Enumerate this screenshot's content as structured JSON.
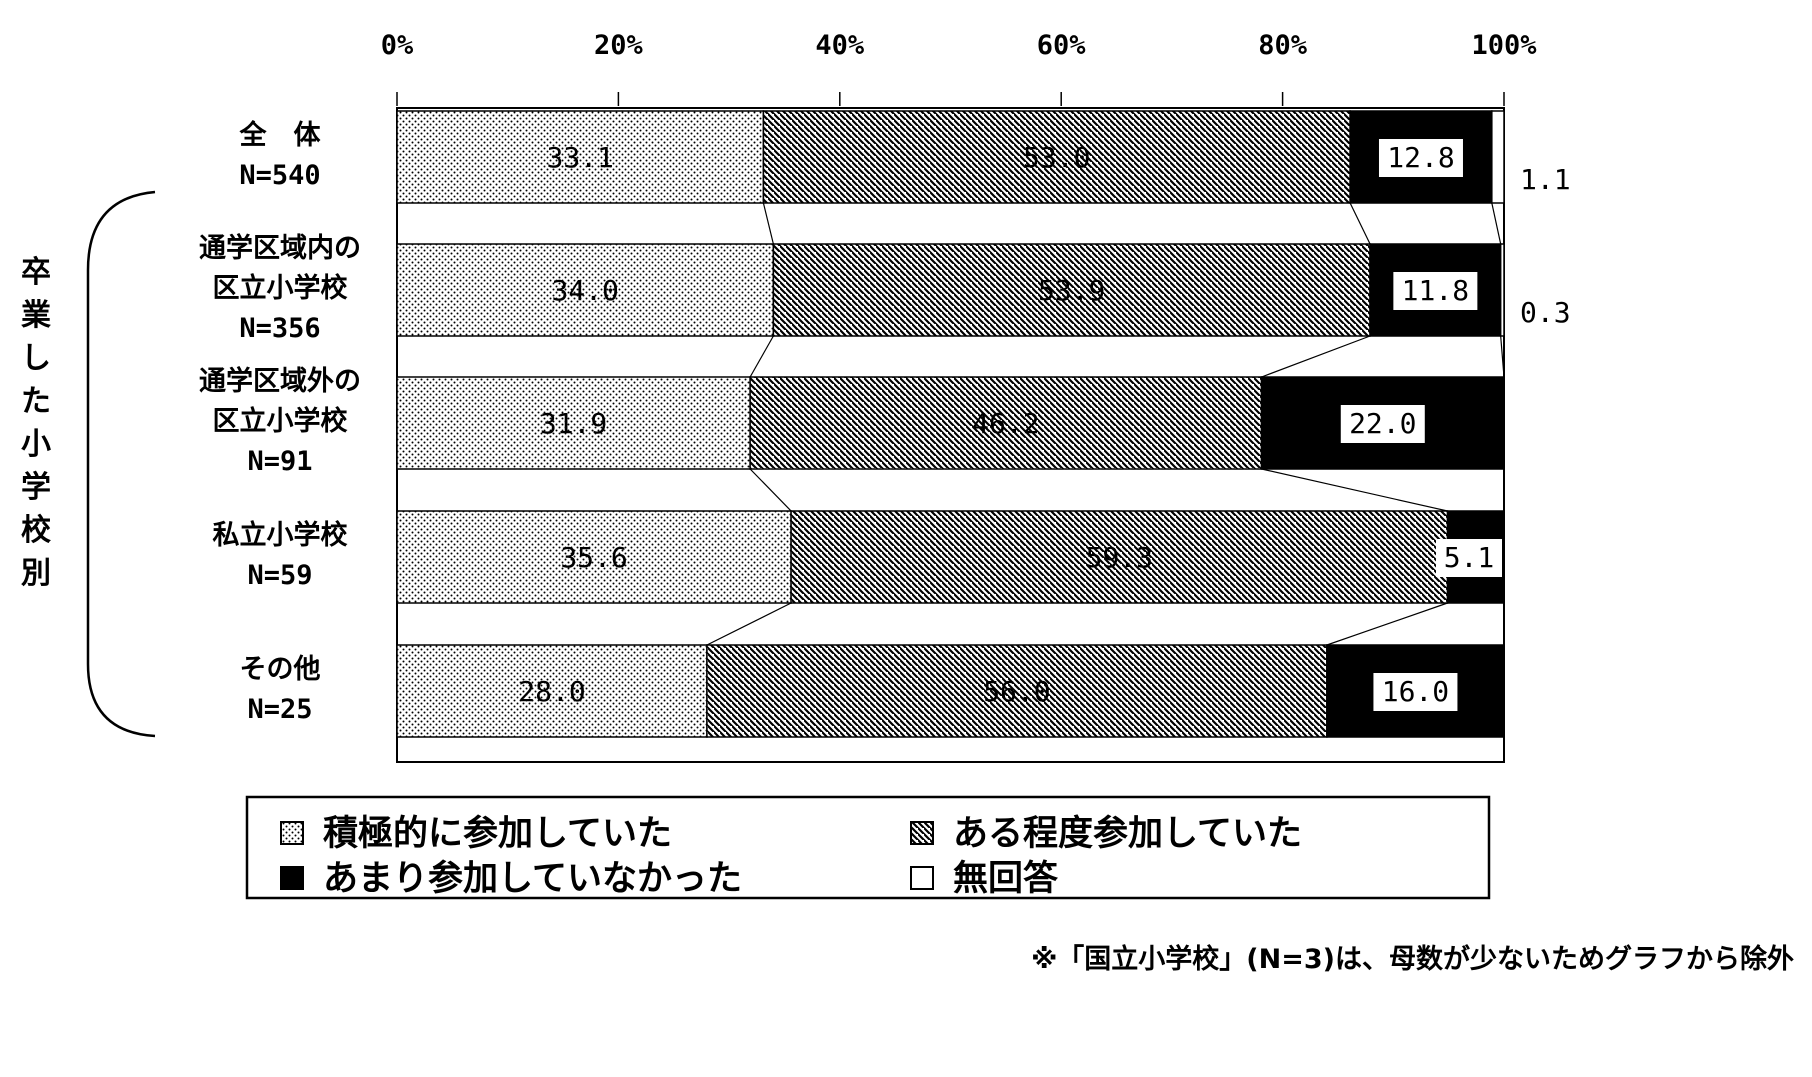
{
  "chart_data": {
    "type": "bar",
    "orientation": "horizontal",
    "stacked": true,
    "xlim": [
      0,
      100
    ],
    "x_ticks": [
      "0%",
      "20%",
      "40%",
      "60%",
      "80%",
      "100%"
    ],
    "categories": [
      [
        "全　体",
        "N=540"
      ],
      [
        "通学区域内の",
        "区立小学校",
        "N=356"
      ],
      [
        "通学区域外の",
        "区立小学校",
        "N=91"
      ],
      [
        "私立小学校",
        "N=59"
      ],
      [
        "その他",
        "N=25"
      ]
    ],
    "group_label": "卒業した小学校別",
    "series": [
      {
        "name": "積極的に参加していた",
        "values": [
          33.1,
          34.0,
          31.9,
          35.6,
          28.0
        ],
        "labels": [
          "33.1",
          "34.0",
          "31.9",
          "35.6",
          "28.0"
        ],
        "pattern": "dots"
      },
      {
        "name": "ある程度参加していた",
        "values": [
          53.0,
          53.9,
          46.2,
          59.3,
          56.0
        ],
        "labels": [
          "53.0",
          "53.9",
          "46.2",
          "59.3",
          "56.0"
        ],
        "pattern": "hatch"
      },
      {
        "name": "あまり参加していなかった",
        "values": [
          12.8,
          11.8,
          22.0,
          5.1,
          16.0
        ],
        "labels": [
          "12.8",
          "11.8",
          "22.0",
          "5.1",
          "16.0"
        ],
        "pattern": "solid"
      },
      {
        "name": "無回答",
        "values": [
          1.1,
          0.3,
          0,
          0,
          0
        ],
        "labels": [
          "1.1",
          "0.3",
          "",
          "",
          ""
        ],
        "pattern": "white"
      }
    ],
    "legend_position": "bottom",
    "note": "※「国立小学校」(N=3)は、母数が少ないためグラフから除外"
  }
}
